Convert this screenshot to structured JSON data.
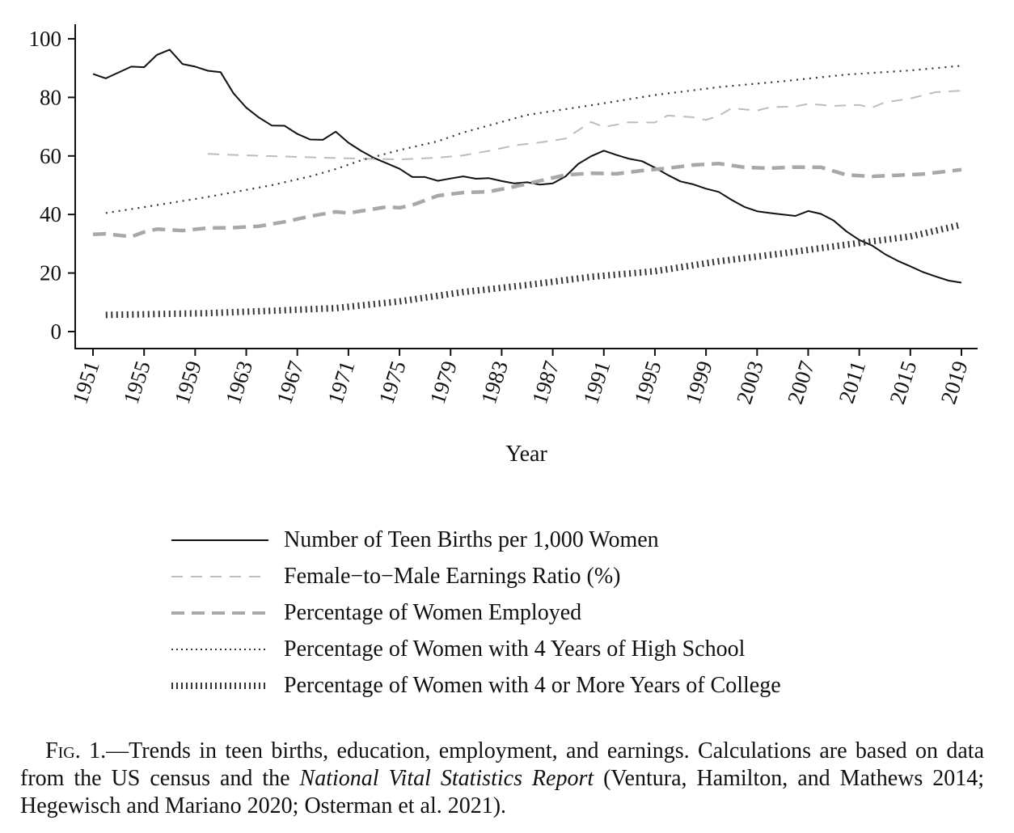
{
  "chart_data": {
    "type": "line",
    "xlabel": "Year",
    "ylabel": "",
    "xlim": [
      1951,
      2019
    ],
    "ylim": [
      0,
      100
    ],
    "x_ticks": [
      1951,
      1955,
      1959,
      1963,
      1967,
      1971,
      1975,
      1979,
      1983,
      1987,
      1991,
      1995,
      1999,
      2003,
      2007,
      2011,
      2015,
      2019
    ],
    "y_ticks": [
      0,
      20,
      40,
      60,
      80,
      100
    ],
    "grid": false,
    "legend_position": "below",
    "series": [
      {
        "name": "Number of Teen Births per 1,000 Women",
        "style": "solid",
        "color": "#111111",
        "x": [
          1951,
          1952,
          1953,
          1954,
          1955,
          1956,
          1957,
          1958,
          1959,
          1960,
          1961,
          1962,
          1963,
          1964,
          1965,
          1966,
          1967,
          1968,
          1969,
          1970,
          1971,
          1972,
          1973,
          1974,
          1975,
          1976,
          1977,
          1978,
          1979,
          1980,
          1981,
          1982,
          1983,
          1984,
          1985,
          1986,
          1987,
          1988,
          1989,
          1990,
          1991,
          1992,
          1993,
          1994,
          1995,
          1996,
          1997,
          1998,
          1999,
          2000,
          2001,
          2002,
          2003,
          2004,
          2005,
          2006,
          2007,
          2008,
          2009,
          2010,
          2011,
          2012,
          2013,
          2014,
          2015,
          2016,
          2017,
          2018,
          2019
        ],
        "values": [
          88,
          86.5,
          88.5,
          90.5,
          90.3,
          94.5,
          96.3,
          91.4,
          90.5,
          89.1,
          88.6,
          81.4,
          76.5,
          73.1,
          70.4,
          70.3,
          67.5,
          65.6,
          65.5,
          68.3,
          64.5,
          61.7,
          59.3,
          57.5,
          55.6,
          52.8,
          52.8,
          51.5,
          52.3,
          53,
          52.2,
          52.4,
          51.4,
          50.6,
          51,
          50.2,
          50.6,
          53,
          57.3,
          59.9,
          61.8,
          60.3,
          59,
          58.2,
          56,
          53.5,
          51.3,
          50.3,
          48.8,
          47.7,
          45,
          42.6,
          41.1,
          40.5,
          40,
          39.5,
          41.2,
          40.2,
          37.9,
          34.2,
          31.3,
          29.4,
          26.5,
          24.2,
          22.3,
          20.3,
          18.8,
          17.4,
          16.7
        ]
      },
      {
        "name": "Female−to−Male Earnings Ratio (%)",
        "style": "dashed-thin",
        "color": "#bdbdbd",
        "x": [
          1960,
          1963,
          1966,
          1969,
          1972,
          1975,
          1978,
          1980,
          1982,
          1984,
          1986,
          1988,
          1990,
          1991,
          1993,
          1995,
          1996,
          1998,
          1999,
          2000,
          2001,
          2003,
          2004,
          2006,
          2007,
          2009,
          2011,
          2012,
          2013,
          2015,
          2017,
          2019
        ],
        "values": [
          60.7,
          60.2,
          59.8,
          59.4,
          59.1,
          58.8,
          59.4,
          60.2,
          61.7,
          63.6,
          64.6,
          65.9,
          71.6,
          69.9,
          71.5,
          71.4,
          73.8,
          73.2,
          72.3,
          73.7,
          76.3,
          75.5,
          76.6,
          76.9,
          77.8,
          77.1,
          77.4,
          76.5,
          78.3,
          79.6,
          81.8,
          82.3
        ]
      },
      {
        "name": "Percentage of Women Employed",
        "style": "dashed-thick",
        "color": "#a8a8a8",
        "x": [
          1951,
          1952,
          1954,
          1955,
          1956,
          1958,
          1960,
          1962,
          1964,
          1966,
          1968,
          1970,
          1971,
          1972,
          1974,
          1975,
          1976,
          1978,
          1980,
          1982,
          1984,
          1986,
          1988,
          1990,
          1992,
          1994,
          1996,
          1998,
          2000,
          2002,
          2004,
          2006,
          2008,
          2010,
          2012,
          2014,
          2016,
          2019
        ],
        "values": [
          33.2,
          33.4,
          32.4,
          34,
          35,
          34.5,
          35.4,
          35.5,
          36,
          37.5,
          39.4,
          40.9,
          40.5,
          41.2,
          42.6,
          42.3,
          43.2,
          46.4,
          47.5,
          47.8,
          49.5,
          51.5,
          53.5,
          54.1,
          53.9,
          55,
          55.8,
          56.9,
          57.4,
          56.1,
          55.8,
          56.2,
          56.1,
          53.5,
          53,
          53.4,
          53.8,
          55.3
        ]
      },
      {
        "name": "Percentage of Women with 4 Years of High School",
        "style": "dotted",
        "color": "#333333",
        "x": [
          1952,
          1955,
          1960,
          1965,
          1968,
          1970,
          1972,
          1975,
          1978,
          1980,
          1985,
          1990,
          1995,
          2000,
          2005,
          2010,
          2015,
          2019
        ],
        "values": [
          40.5,
          42.5,
          46,
          50,
          53,
          55.5,
          58.5,
          62,
          65,
          68,
          74,
          77.3,
          80.8,
          83.5,
          85.5,
          87.8,
          89.2,
          90.8
        ]
      },
      {
        "name": "Percentage of Women with 4 or More Years of College",
        "style": "ticked",
        "color": "#333333",
        "x": [
          1952,
          1960,
          1965,
          1970,
          1975,
          1980,
          1985,
          1990,
          1995,
          2000,
          2005,
          2010,
          2015,
          2019
        ],
        "values": [
          5.7,
          6.3,
          7.1,
          8,
          10.3,
          13.5,
          15.9,
          18.7,
          20.6,
          24,
          26.7,
          29.7,
          32.5,
          36.5
        ]
      }
    ]
  },
  "caption": {
    "fig_label": "Fig. 1.",
    "text_1": "—Trends in teen births, education, employment, and earnings. Calculations are based on data from the US census and the ",
    "italic": "National Vital Statistics Report",
    "text_2": " (Ventura, Hamilton, and Mathews 2014; Hegewisch and Mariano 2020; Osterman et al. 2021)."
  }
}
